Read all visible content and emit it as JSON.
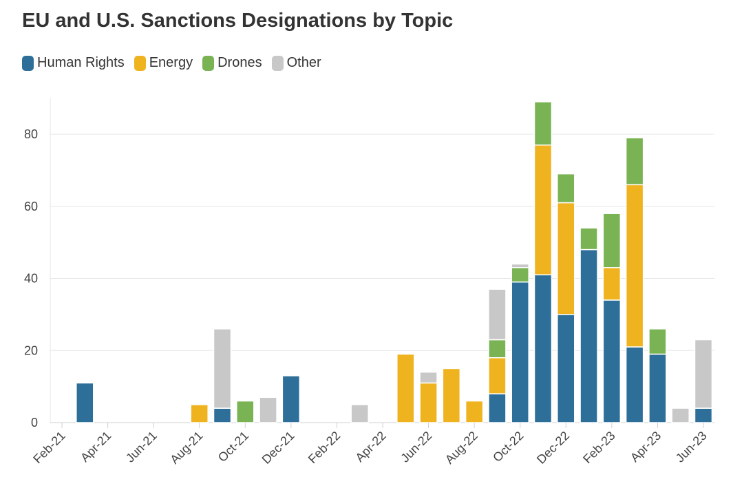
{
  "title": "EU and U.S. Sanctions Designations by Topic",
  "colors": {
    "Human Rights": "#2e6f99",
    "Energy": "#efb320",
    "Drones": "#7ab354",
    "Other": "#c8c8c8",
    "grid": "#e6e6e6",
    "axis": "#d0d0d0"
  },
  "chart_data": {
    "type": "bar",
    "stacked": true,
    "title": "EU and U.S. Sanctions Designations by Topic",
    "xlabel": "",
    "ylabel": "",
    "ylim": [
      0,
      90
    ],
    "yticks": [
      0,
      20,
      40,
      60,
      80
    ],
    "grid": true,
    "legend": "top-left",
    "x_tick_labels": [
      "Feb-21",
      "Apr-21",
      "Jun-21",
      "Aug-21",
      "Oct-21",
      "Dec-21",
      "Feb-22",
      "Apr-22",
      "Jun-22",
      "Aug-22",
      "Oct-22",
      "Dec-22",
      "Feb-23",
      "Apr-23",
      "Jun-23"
    ],
    "categories": [
      "Feb-21",
      "Mar-21",
      "Apr-21",
      "May-21",
      "Jun-21",
      "Jul-21",
      "Aug-21",
      "Sep-21",
      "Oct-21",
      "Nov-21",
      "Dec-21",
      "Jan-22",
      "Feb-22",
      "Mar-22",
      "Apr-22",
      "May-22",
      "Jun-22",
      "Jul-22",
      "Aug-22",
      "Sep-22",
      "Oct-22",
      "Nov-22",
      "Dec-22",
      "Jan-23",
      "Feb-23",
      "Mar-23",
      "Apr-23",
      "May-23",
      "Jun-23"
    ],
    "series": [
      {
        "name": "Human Rights",
        "values": [
          0,
          11,
          0,
          0,
          0,
          0,
          0,
          4,
          0,
          0,
          13,
          0,
          0,
          0,
          0,
          0,
          0,
          0,
          0,
          8,
          39,
          41,
          30,
          48,
          34,
          21,
          19,
          0,
          4
        ]
      },
      {
        "name": "Energy",
        "values": [
          0,
          0,
          0,
          0,
          0,
          0,
          5,
          0,
          0,
          0,
          0,
          0,
          0,
          0,
          0,
          19,
          11,
          15,
          6,
          10,
          0,
          36,
          31,
          0,
          9,
          45,
          0,
          0,
          0
        ]
      },
      {
        "name": "Drones",
        "values": [
          0,
          0,
          0,
          0,
          0,
          0,
          0,
          0,
          6,
          0,
          0,
          0,
          0,
          0,
          0,
          0,
          0,
          0,
          0,
          5,
          4,
          12,
          8,
          6,
          15,
          13,
          7,
          0,
          0
        ]
      },
      {
        "name": "Other",
        "values": [
          0,
          0,
          0,
          0,
          0,
          0,
          0,
          22,
          0,
          7,
          0,
          0,
          0,
          5,
          0,
          0,
          3,
          0,
          0,
          14,
          1,
          0,
          0,
          0,
          0,
          0,
          0,
          4,
          19
        ]
      }
    ]
  }
}
